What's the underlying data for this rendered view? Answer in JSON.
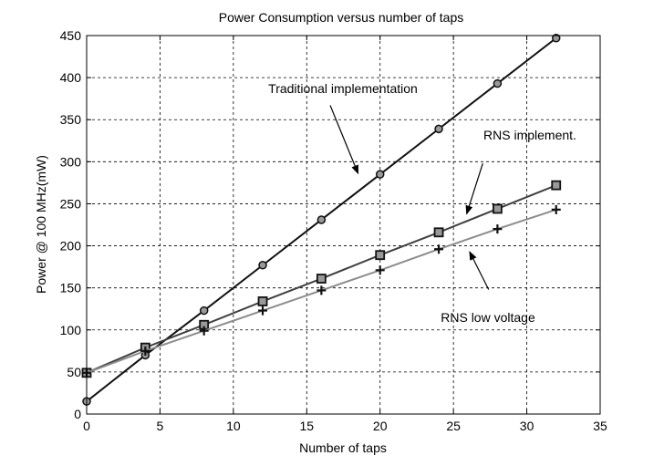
{
  "chart_data": {
    "type": "line",
    "title": "Power Consumption versus number of taps",
    "xlabel": "Number of taps",
    "ylabel": "Power @ 100 MHz(mW)",
    "xlim": [
      0,
      35
    ],
    "ylim": [
      0,
      450
    ],
    "xticks": [
      0,
      5,
      10,
      15,
      20,
      25,
      30,
      35
    ],
    "yticks": [
      0,
      50,
      100,
      150,
      200,
      250,
      300,
      350,
      400,
      450
    ],
    "grid": true,
    "x": [
      0,
      4,
      8,
      12,
      16,
      20,
      24,
      28,
      32
    ],
    "series": [
      {
        "key": "traditional",
        "values": [
          15,
          70,
          123,
          177,
          231,
          285,
          339,
          393,
          447
        ],
        "marker": "circle",
        "color": "#111111"
      },
      {
        "key": "rns",
        "values": [
          49,
          79,
          106,
          134,
          161,
          189,
          216,
          244,
          272
        ],
        "marker": "square",
        "color": "#404040"
      },
      {
        "key": "rns_low",
        "values": [
          49,
          75,
          99,
          123,
          147,
          171,
          196,
          220,
          243
        ],
        "marker": "plus",
        "color": "#8c8c8c"
      }
    ],
    "annotations": [
      {
        "text": "Traditional implementation",
        "arrow_from": [
          16.6,
          367
        ],
        "arrow_to": [
          18.5,
          286
        ]
      },
      {
        "text": "RNS implement.",
        "arrow_from": [
          27.0,
          298
        ],
        "arrow_to": [
          25.9,
          238
        ]
      },
      {
        "text": "RNS low voltage",
        "arrow_from": [
          27.4,
          148
        ],
        "arrow_to": [
          26.1,
          193
        ]
      }
    ]
  }
}
